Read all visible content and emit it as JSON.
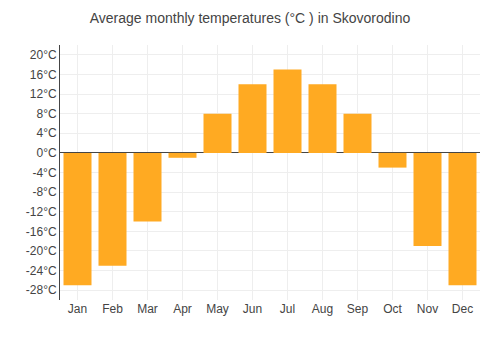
{
  "chart_data": {
    "type": "bar",
    "title": "Average monthly temperatures (°C ) in Skovorodino",
    "categories": [
      "Jan",
      "Feb",
      "Mar",
      "Apr",
      "May",
      "Jun",
      "Jul",
      "Aug",
      "Sep",
      "Oct",
      "Nov",
      "Dec"
    ],
    "values": [
      -27,
      -23,
      -14,
      -1,
      8,
      14,
      17,
      14,
      8,
      -3,
      -19,
      -27
    ],
    "color": "#FFAA22",
    "ylim": [
      -30,
      22
    ],
    "yticks": [
      {
        "value": -28,
        "label": "-28°C"
      },
      {
        "value": -24,
        "label": "-24°C"
      },
      {
        "value": -20,
        "label": "-20°C"
      },
      {
        "value": -16,
        "label": "-16°C"
      },
      {
        "value": -12,
        "label": "-12°C"
      },
      {
        "value": -8,
        "label": "-8°C"
      },
      {
        "value": -4,
        "label": "-4°C"
      },
      {
        "value": 0,
        "label": "0°C"
      },
      {
        "value": 4,
        "label": "4°C"
      },
      {
        "value": 8,
        "label": "8°C"
      },
      {
        "value": 12,
        "label": "12°C"
      },
      {
        "value": 16,
        "label": "16°C"
      },
      {
        "value": 20,
        "label": "20°C"
      }
    ],
    "grid": true
  }
}
